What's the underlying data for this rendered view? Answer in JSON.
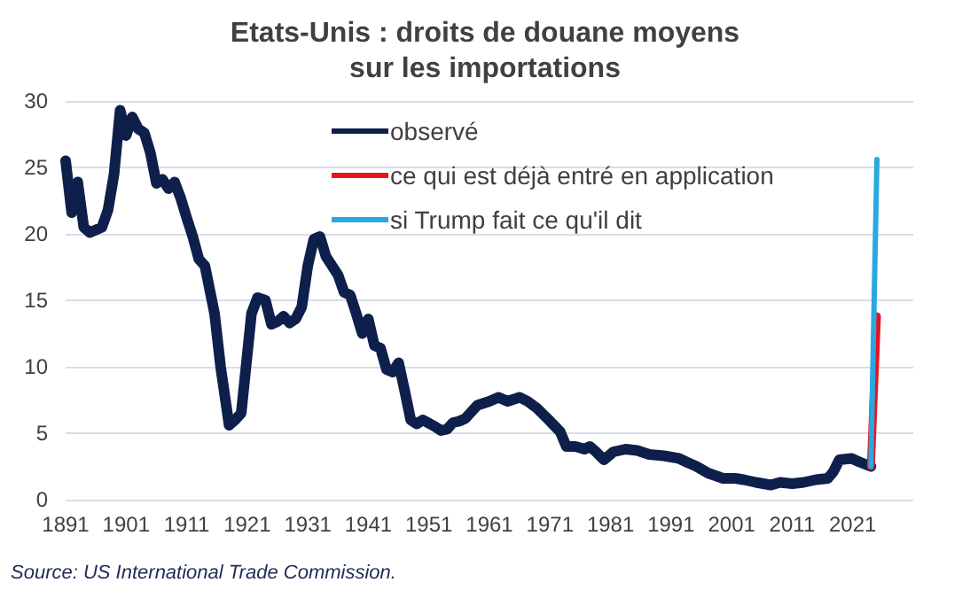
{
  "chart_data": {
    "type": "line",
    "title": "Etats-Unis : droits de douane moyens\nsur les importations",
    "xlim": [
      1891,
      2031
    ],
    "xticks": [
      1891,
      1901,
      1911,
      1921,
      1931,
      1941,
      1951,
      1961,
      1971,
      1981,
      1991,
      2001,
      2011,
      2021
    ],
    "ylim": [
      0,
      30
    ],
    "yticks": [
      0,
      5,
      10,
      15,
      20,
      25,
      30
    ],
    "grid": "y",
    "legend": "top",
    "marker": "none",
    "line_style": "solid",
    "series": [
      {
        "name": "observé",
        "color": "#0f1f4b",
        "x": [
          1891,
          1892,
          1893,
          1894,
          1895,
          1897,
          1898,
          1899,
          1900,
          1901,
          1902,
          1903,
          1904,
          1905,
          1906,
          1907,
          1908,
          1909,
          1910,
          1911,
          1912,
          1913,
          1914,
          1915.6,
          1916.6,
          1918,
          1919,
          1920,
          1921.7,
          1922.7,
          1924,
          1925,
          1926,
          1927,
          1928,
          1929,
          1930,
          1931,
          1932,
          1933,
          1934,
          1936,
          1937,
          1938,
          1939,
          1940,
          1941,
          1942,
          1943,
          1944,
          1945,
          1946,
          1947,
          1948,
          1949,
          1950,
          1952,
          1953,
          1954,
          1955,
          1956,
          1957,
          1959,
          1961,
          1962.5,
          1964,
          1966,
          1967.3,
          1968.8,
          1970.8,
          1972.7,
          1973.7,
          1975.2,
          1976.7,
          1977.6,
          1978.6,
          1979.9,
          1981.5,
          1983.5,
          1985.4,
          1987.4,
          1989.8,
          1992.3,
          1993.7,
          1995.2,
          1997.1,
          1999.6,
          2001.6,
          2003,
          2005,
          2007.5,
          2009,
          2011,
          2012.9,
          2014.9,
          2016.9,
          2017.8,
          2018.8,
          2020.8,
          2022.3,
          2024
        ],
        "values": [
          25.5,
          21.6,
          23.9,
          20.5,
          20.1,
          20.5,
          21.8,
          24.5,
          29.3,
          27.4,
          28.8,
          27.9,
          27.6,
          26.1,
          23.8,
          24.1,
          23.4,
          23.9,
          22.7,
          21.2,
          19.8,
          18.1,
          17.6,
          14.0,
          10.0,
          5.6,
          6.0,
          6.5,
          14.0,
          15.2,
          15.0,
          13.2,
          13.4,
          13.8,
          13.3,
          13.6,
          14.5,
          17.6,
          19.6,
          19.8,
          18.3,
          16.9,
          15.6,
          15.4,
          14.0,
          12.5,
          13.6,
          11.6,
          11.4,
          9.8,
          9.6,
          10.3,
          8.2,
          6.0,
          5.7,
          6.0,
          5.5,
          5.2,
          5.3,
          5.8,
          5.9,
          6.1,
          7.1,
          7.4,
          7.7,
          7.4,
          7.7,
          7.4,
          6.9,
          6.0,
          5.1,
          4.0,
          4.0,
          3.8,
          4.0,
          3.6,
          3.0,
          3.6,
          3.8,
          3.7,
          3.4,
          3.3,
          3.1,
          2.8,
          2.5,
          2.0,
          1.6,
          1.6,
          1.5,
          1.3,
          1.1,
          1.3,
          1.2,
          1.3,
          1.5,
          1.6,
          2.1,
          3.0,
          3.1,
          2.8,
          2.5
        ]
      },
      {
        "name": "ce qui est déjà entré en application",
        "color": "#e8141e",
        "x": [
          2024,
          2025
        ],
        "values": [
          2.5,
          13.8
        ]
      },
      {
        "name": "si Trump fait ce qu'il dit",
        "color": "#29a8e0",
        "x": [
          2024,
          2025
        ],
        "values": [
          2.5,
          25.6
        ]
      }
    ],
    "annotations": [
      "Source: US International Trade Commission."
    ]
  }
}
